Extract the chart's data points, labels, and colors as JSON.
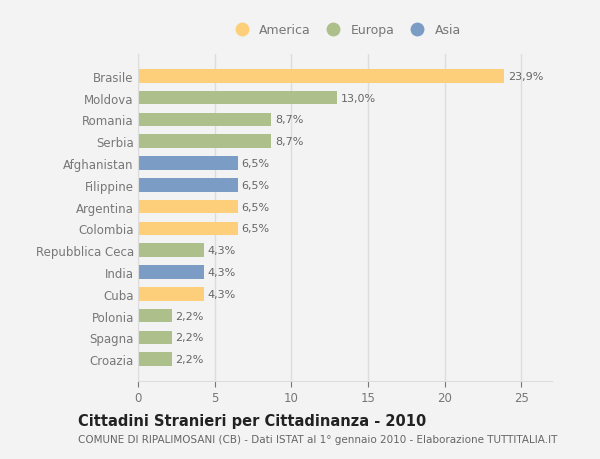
{
  "categories": [
    "Brasile",
    "Moldova",
    "Romania",
    "Serbia",
    "Afghanistan",
    "Filippine",
    "Argentina",
    "Colombia",
    "Repubblica Ceca",
    "India",
    "Cuba",
    "Polonia",
    "Spagna",
    "Croazia"
  ],
  "values": [
    23.9,
    13.0,
    8.7,
    8.7,
    6.5,
    6.5,
    6.5,
    6.5,
    4.3,
    4.3,
    4.3,
    2.2,
    2.2,
    2.2
  ],
  "labels": [
    "23,9%",
    "13,0%",
    "8,7%",
    "8,7%",
    "6,5%",
    "6,5%",
    "6,5%",
    "6,5%",
    "4,3%",
    "4,3%",
    "4,3%",
    "2,2%",
    "2,2%",
    "2,2%"
  ],
  "continents": [
    "America",
    "Europa",
    "Europa",
    "Europa",
    "Asia",
    "Asia",
    "America",
    "America",
    "Europa",
    "Asia",
    "America",
    "Europa",
    "Europa",
    "Europa"
  ],
  "colors": {
    "America": "#FDCF7A",
    "Europa": "#ADBF8A",
    "Asia": "#7A9CC5"
  },
  "legend_items": [
    {
      "label": "America",
      "color": "#FDCF7A"
    },
    {
      "label": "Europa",
      "color": "#ADBF8A"
    },
    {
      "label": "Asia",
      "color": "#7A9CC5"
    }
  ],
  "xlim": [
    0,
    27
  ],
  "xticks": [
    0,
    5,
    10,
    15,
    20,
    25
  ],
  "title": "Cittadini Stranieri per Cittadinanza - 2010",
  "subtitle": "COMUNE DI RIPALIMOSANI (CB) - Dati ISTAT al 1° gennaio 2010 - Elaborazione TUTTITALIA.IT",
  "title_fontsize": 10.5,
  "subtitle_fontsize": 7.5,
  "background_color": "#F3F3F3",
  "grid_color": "#DDDDDD",
  "bar_height": 0.62,
  "label_fontsize": 8,
  "ytick_fontsize": 8.5,
  "xtick_fontsize": 8.5,
  "label_color": "#666666",
  "ytick_color": "#777777"
}
